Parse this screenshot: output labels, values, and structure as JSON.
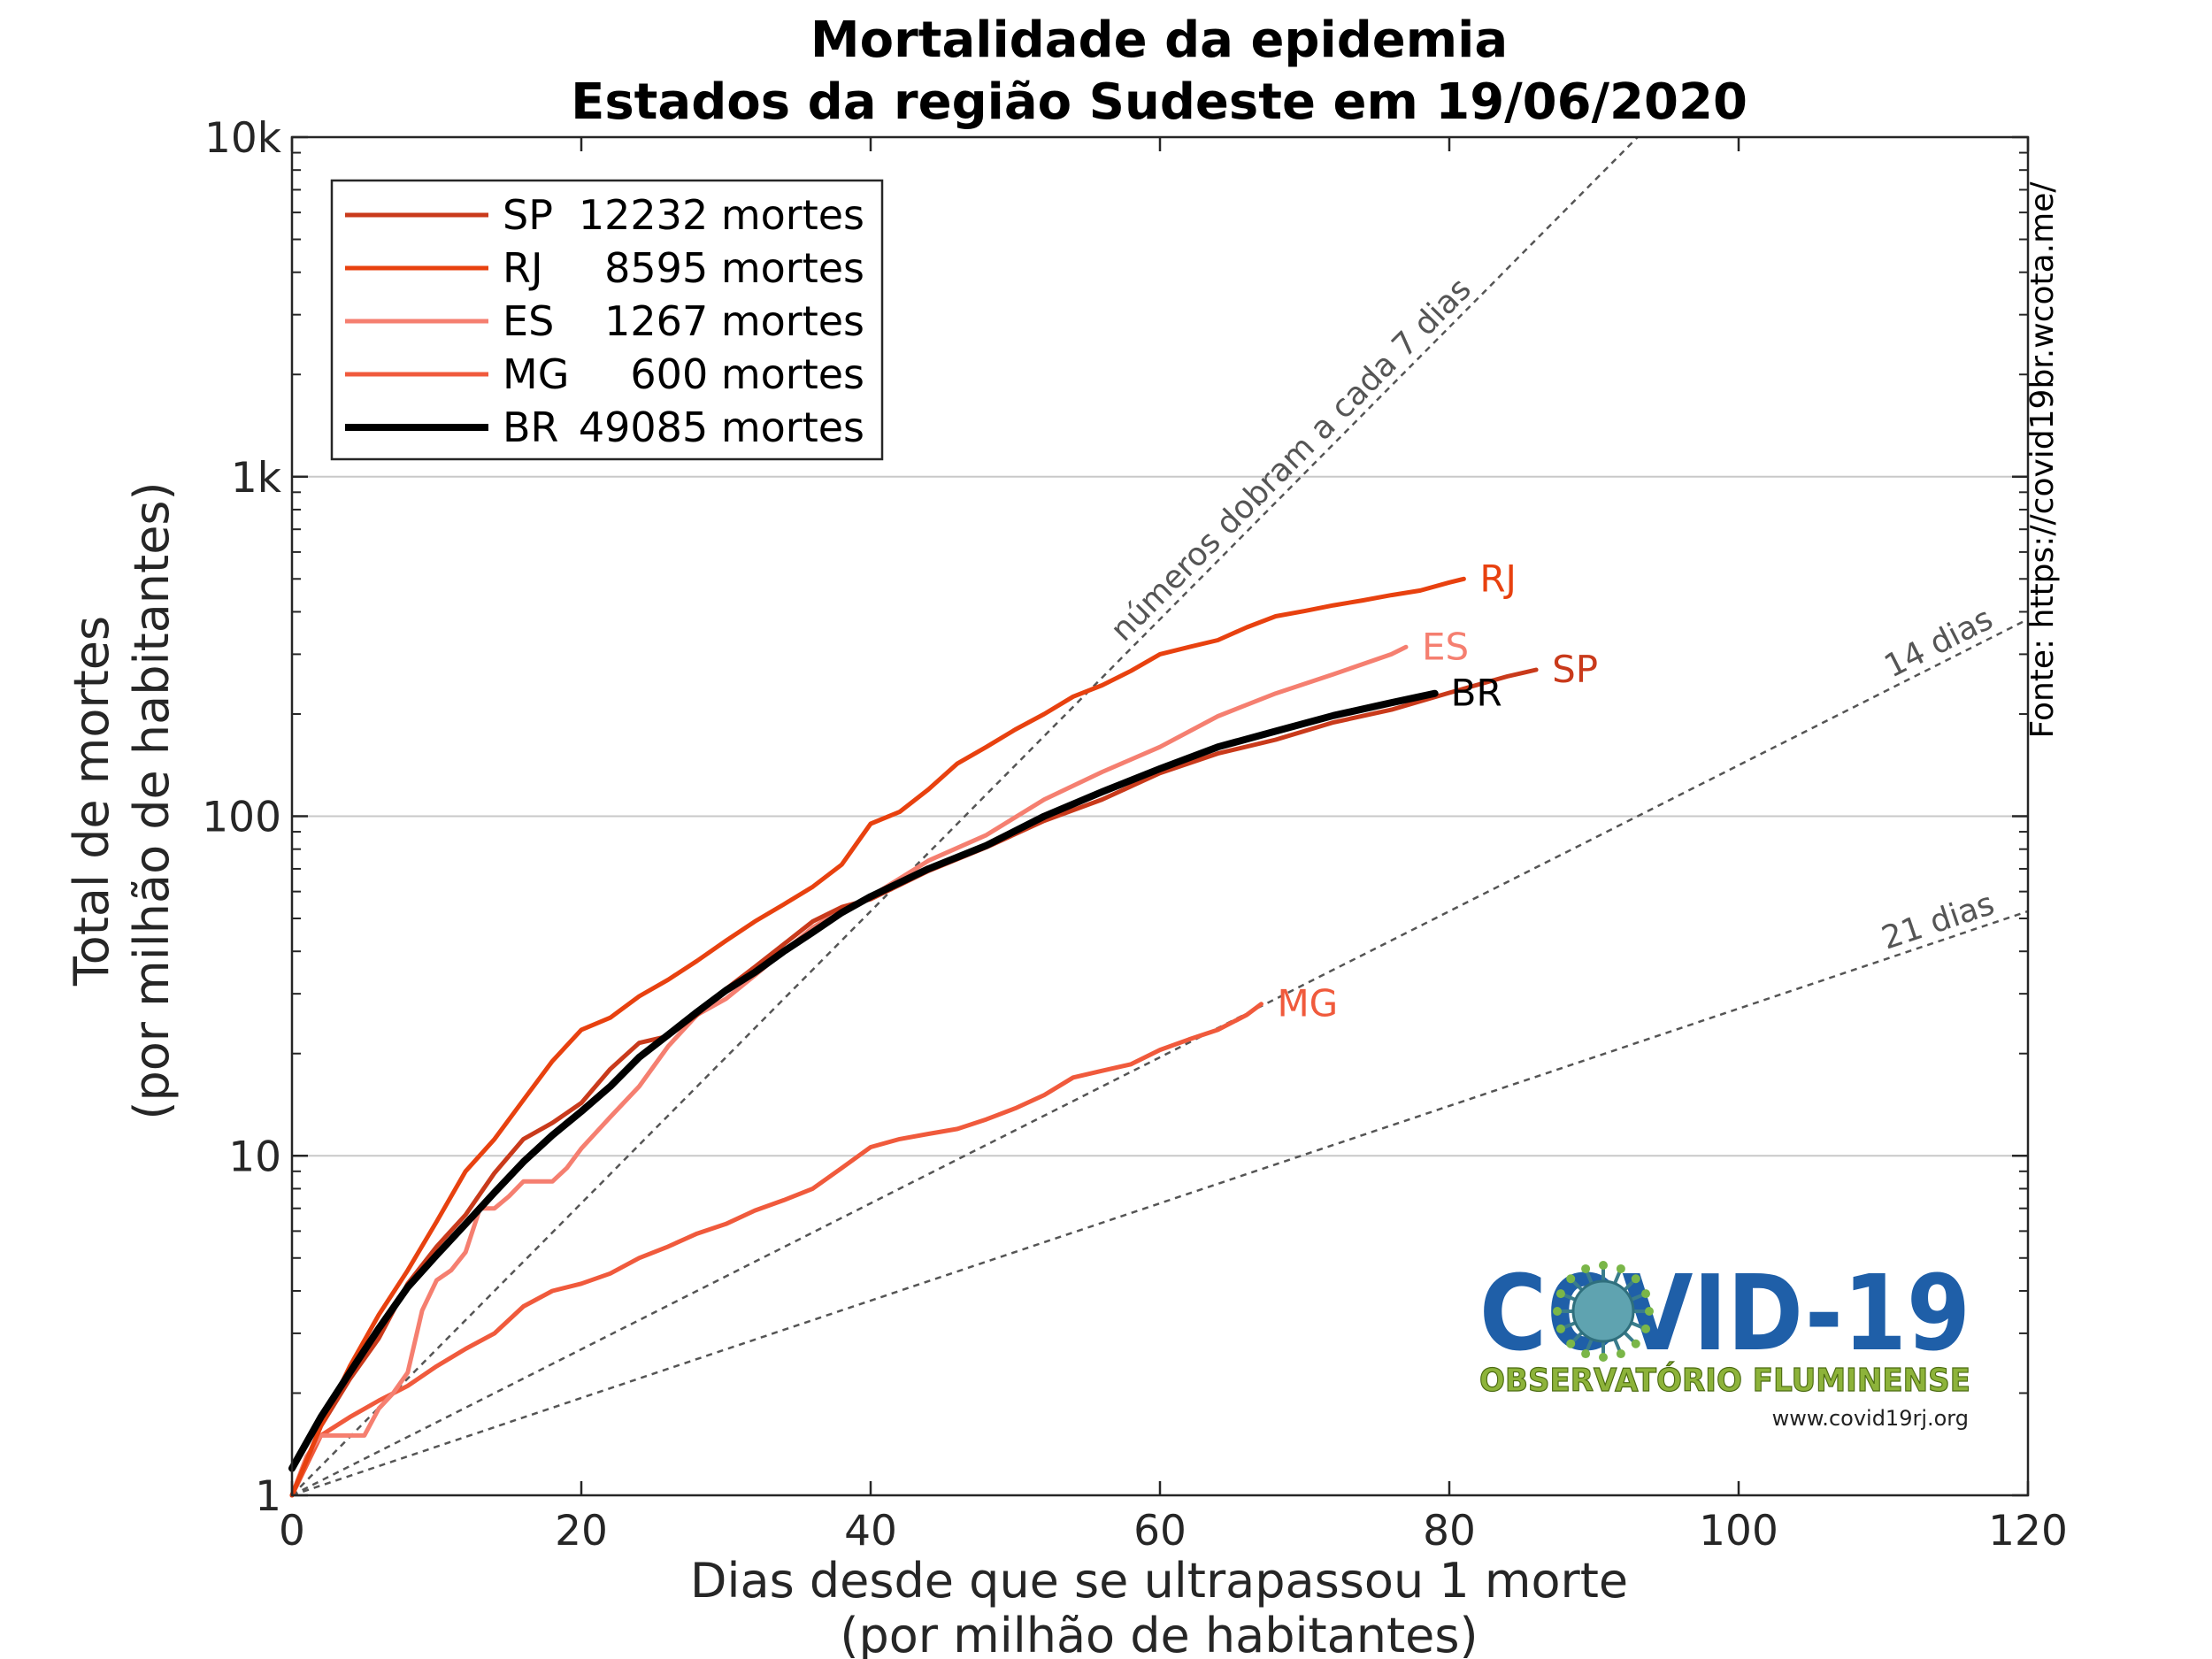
{
  "chart_data": {
    "type": "line",
    "title": "Mortalidade da epidemia",
    "subtitle": "Estados da região Sudeste em 19/06/2020",
    "xlabel": "Dias desde que se ultrapassou 1 morte",
    "xlabel2": "(por milhão de habitantes)",
    "ylabel": "Total de mortes",
    "ylabel2": "(por milhão de habitantes)",
    "xlim": [
      0,
      120
    ],
    "ylim": [
      1,
      10000
    ],
    "yscale": "log",
    "grid": "horizontal, y major ticks",
    "legend_position": "top-left",
    "xticks": [
      0,
      20,
      40,
      60,
      80,
      100,
      120
    ],
    "xtick_labels": [
      "0",
      "20",
      "40",
      "60",
      "80",
      "100",
      "120"
    ],
    "yticks": [
      1,
      10,
      100,
      1000,
      10000
    ],
    "ytick_labels": [
      "1",
      "10",
      "100",
      "1k",
      "10k"
    ],
    "series": [
      {
        "name": "SP",
        "legend": "SP  12232 mortes",
        "end_label": "SP",
        "color": "#c93a1b",
        "x": [
          0,
          2,
          4,
          6,
          8,
          10,
          12,
          14,
          16,
          18,
          20,
          22,
          24,
          26,
          28,
          30,
          32,
          34,
          36,
          38,
          40,
          44,
          48,
          52,
          56,
          60,
          64,
          68,
          72,
          76,
          80,
          84,
          86
        ],
        "y": [
          1,
          1.6,
          2.2,
          2.9,
          4.2,
          5.4,
          6.7,
          8.9,
          11.2,
          12.5,
          14.3,
          18,
          21.5,
          22.5,
          26,
          31,
          36,
          42,
          49,
          54,
          57,
          69,
          81,
          97,
          112,
          134,
          153,
          168,
          189,
          206,
          231,
          258,
          270
        ]
      },
      {
        "name": "RJ",
        "legend": "RJ     8595 mortes",
        "end_label": "RJ",
        "color": "#e8410f",
        "x": [
          0,
          2,
          4,
          6,
          8,
          10,
          12,
          14,
          16,
          18,
          20,
          22,
          24,
          26,
          28,
          30,
          32,
          34,
          36,
          38,
          40,
          42,
          44,
          46,
          48,
          50,
          52,
          54,
          56,
          58,
          60,
          62,
          64,
          66,
          68,
          70,
          72,
          74,
          76,
          78,
          80,
          81
        ],
        "y": [
          1,
          1.6,
          2.4,
          3.4,
          4.6,
          6.4,
          9,
          11.2,
          14.6,
          19,
          23.5,
          25.5,
          29.5,
          33,
          37.5,
          43,
          49,
          55,
          62,
          72,
          95,
          103,
          120,
          143,
          160,
          180,
          200,
          225,
          243,
          268,
          300,
          315,
          330,
          360,
          388,
          402,
          418,
          432,
          448,
          462,
          488,
          500
        ]
      },
      {
        "name": "ES",
        "legend": "ES     1267 mortes",
        "end_label": "ES",
        "color": "#f57f70",
        "x": [
          0,
          1,
          2,
          3,
          4,
          5,
          6,
          7,
          8,
          9,
          10,
          11,
          12,
          13,
          14,
          15,
          16,
          17,
          18,
          19,
          20,
          22,
          24,
          26,
          28,
          30,
          32,
          34,
          36,
          38,
          40,
          44,
          48,
          52,
          56,
          60,
          64,
          68,
          72,
          76,
          77
        ],
        "y": [
          1,
          1.3,
          1.5,
          1.5,
          1.5,
          1.5,
          1.8,
          2,
          2.3,
          3.5,
          4.3,
          4.6,
          5.2,
          7,
          7,
          7.6,
          8.4,
          8.4,
          8.4,
          9.2,
          10.5,
          13,
          16,
          21,
          26,
          29,
          34,
          40,
          47,
          53,
          58,
          74,
          88,
          112,
          135,
          160,
          197,
          230,
          262,
          300,
          315
        ]
      },
      {
        "name": "MG",
        "legend": "MG       600 mortes",
        "end_label": "MG",
        "color": "#f05a3c",
        "x": [
          0,
          2,
          4,
          6,
          8,
          10,
          12,
          14,
          16,
          18,
          20,
          22,
          24,
          26,
          28,
          30,
          32,
          34,
          36,
          38,
          40,
          42,
          44,
          46,
          48,
          50,
          52,
          54,
          56,
          58,
          60,
          62,
          64,
          66,
          67
        ],
        "y": [
          1,
          1.5,
          1.7,
          1.9,
          2.1,
          2.4,
          2.7,
          3,
          3.6,
          4,
          4.2,
          4.5,
          5,
          5.4,
          5.9,
          6.3,
          6.9,
          7.4,
          8,
          9.2,
          10.6,
          11.2,
          11.6,
          12,
          12.8,
          13.8,
          15.1,
          17,
          17.8,
          18.6,
          20.5,
          22,
          23.5,
          26,
          28
        ]
      },
      {
        "name": "BR",
        "legend": "BR  49085 mortes",
        "end_label": "BR",
        "color": "#000000",
        "x": [
          0,
          2,
          4,
          6,
          8,
          10,
          12,
          14,
          16,
          18,
          20,
          22,
          24,
          26,
          28,
          30,
          32,
          34,
          36,
          38,
          40,
          44,
          48,
          52,
          56,
          60,
          64,
          68,
          72,
          76,
          79
        ],
        "y": [
          1.2,
          1.7,
          2.3,
          3.1,
          4.1,
          5.1,
          6.3,
          7.8,
          9.6,
          11.5,
          13.5,
          16,
          19.5,
          22.7,
          26.5,
          30.7,
          34.7,
          40,
          45.5,
          52,
          58,
          70,
          82,
          100,
          118,
          138,
          160,
          178,
          198,
          216,
          230
        ]
      }
    ],
    "reference_lines": [
      {
        "label": "números dobram a cada 7 dias",
        "doubling_days": 7
      },
      {
        "label": "14 dias",
        "doubling_days": 14
      },
      {
        "label": "21 dias",
        "doubling_days": 21
      }
    ]
  },
  "source": "Fonte: https://covid19br.wcota.me/",
  "logo": {
    "title": "COVID-19",
    "subtitle": "OBSERVATÓRIO FLUMINENSE",
    "url": "www.covid19rj.org"
  },
  "colors": {
    "grid": "#c8c8c8",
    "axis": "#262626",
    "reference": "#555555",
    "logo_blue": "#1f5fa8",
    "logo_green": "#8db33a"
  }
}
